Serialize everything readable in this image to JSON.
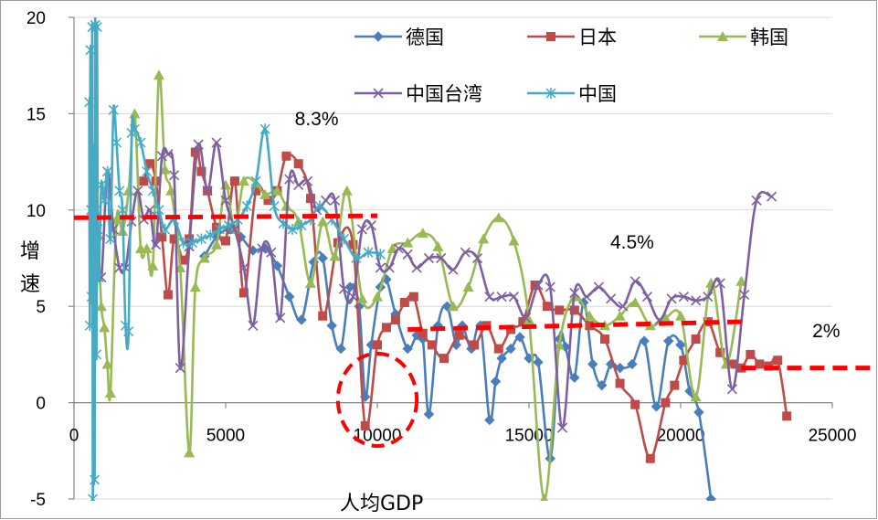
{
  "chart_data": {
    "type": "line",
    "xlabel": "人均GDP",
    "ylabel_chars": [
      "增",
      "速"
    ],
    "xlim": [
      0,
      25000
    ],
    "ylim": [
      -5,
      20
    ],
    "xticks": [
      "0",
      "5000",
      "10000",
      "15000",
      "20000",
      "25000"
    ],
    "yticks": [
      "20",
      "15",
      "10",
      "5",
      "0",
      "-5"
    ],
    "xtick_values": [
      0,
      5000,
      10000,
      15000,
      20000,
      25000
    ],
    "ytick_values": [
      20,
      15,
      10,
      5,
      0,
      -5
    ],
    "legend_position": "top-right",
    "colors": {
      "germany": "#4A7EBB",
      "japan": "#BE4B48",
      "korea": "#98B954",
      "taiwan": "#7D60A0",
      "china": "#46AAC5",
      "trend": "#FF0000"
    },
    "series": [
      {
        "name": "德国",
        "marker": "diamond",
        "color": "#4A7EBB",
        "x": [
          4300,
          4700,
          5100,
          5500,
          5900,
          6300,
          6700,
          7100,
          7500,
          7900,
          8200,
          8500,
          8800,
          9100,
          9400,
          9600,
          9800,
          10100,
          10300,
          10600,
          11000,
          11300,
          11500,
          11700,
          12000,
          12300,
          12600,
          12800,
          13100,
          13400,
          13700,
          13900,
          14100,
          14400,
          14700,
          15000,
          15300,
          15700,
          16000,
          16200,
          16500,
          16800,
          17100,
          17400,
          17700,
          18000,
          18400,
          18800,
          19200,
          19600,
          20000,
          20300,
          20600,
          21000
        ],
        "y": [
          7.6,
          8.6,
          9.0,
          8.6,
          7.9,
          8.0,
          7.1,
          5.5,
          4.3,
          7.3,
          7.5,
          4.0,
          2.8,
          6.0,
          5.0,
          0.3,
          3.0,
          6.0,
          6.4,
          4.6,
          2.8,
          3.5,
          3.3,
          -0.6,
          4.0,
          5.0,
          3.0,
          4.0,
          2.8,
          4.0,
          -0.9,
          1.1,
          2.3,
          2.8,
          3.4,
          2.3,
          2.1,
          -2.9,
          3.3,
          2.9,
          1.3,
          5.2,
          2.0,
          0.9,
          2.0,
          1.8,
          2.0,
          3.2,
          -0.2,
          3.2,
          3.0,
          0.6,
          -0.5,
          -5.0
        ]
      },
      {
        "name": "日本",
        "marker": "square",
        "color": "#BE4B48",
        "x": [
          2300,
          2500,
          2700,
          2900,
          3100,
          3300,
          3600,
          3800,
          4000,
          4200,
          4400,
          4700,
          5000,
          5300,
          5600,
          6000,
          6400,
          6700,
          7000,
          7400,
          7800,
          8200,
          8700,
          9200,
          9600,
          10000,
          10300,
          10600,
          10900,
          11200,
          11500,
          11800,
          12200,
          12700,
          13200,
          13600,
          14000,
          14400,
          14800,
          15200,
          15600,
          16000,
          16500,
          17000,
          17500,
          18000,
          18500,
          19000,
          19500,
          19800,
          20100,
          20500,
          20900,
          21300,
          21700,
          22000,
          22300,
          22600,
          22900,
          23200,
          23500
        ],
        "y": [
          11.5,
          12.4,
          11.5,
          8.6,
          5.6,
          8.5,
          7.4,
          8.5,
          13.0,
          12.0,
          11.0,
          9.1,
          8.4,
          11.5,
          5.7,
          11.0,
          10.5,
          11.0,
          12.8,
          12.4,
          10.6,
          4.5,
          8.3,
          8.2,
          -1.2,
          3.0,
          3.9,
          4.3,
          5.2,
          5.5,
          3.6,
          3.0,
          2.3,
          3.5,
          3.0,
          4.0,
          2.8,
          3.8,
          4.2,
          6.1,
          5.0,
          4.8,
          4.8,
          4.0,
          3.3,
          1.0,
          -0.1,
          -2.9,
          0.0,
          0.9,
          2.2,
          3.3,
          4.2,
          2.6,
          2.0,
          1.8,
          2.5,
          2.0,
          1.9,
          2.2,
          -0.7
        ]
      },
      {
        "name": "韩国",
        "marker": "triangle",
        "color": "#98B954",
        "x": [
          800,
          900,
          1000,
          1100,
          1200,
          1400,
          1600,
          1800,
          2000,
          2200,
          2400,
          2600,
          2800,
          3000,
          3200,
          3500,
          3800,
          4000,
          4300,
          4700,
          5000,
          5300,
          5600,
          6000,
          6300,
          6700,
          7000,
          7400,
          7800,
          8200,
          8600,
          9000,
          9500,
          10000,
          10500,
          11000,
          11500,
          12000,
          12500,
          13000,
          13500,
          14000,
          14500,
          15000,
          15500,
          16000,
          16500,
          17000,
          17500,
          18000,
          18500,
          19000,
          19500,
          20000,
          20500,
          21000,
          21500,
          22000
        ],
        "y": [
          8.7,
          5.0,
          3.9,
          2.0,
          0.5,
          9.5,
          8.9,
          11.0,
          15.0,
          8.0,
          8.0,
          7.1,
          17.0,
          12.1,
          11.0,
          7.0,
          -2.6,
          6.0,
          7.5,
          8.2,
          11.3,
          9.0,
          11.5,
          11.4,
          10.8,
          11.0,
          10.2,
          9.4,
          6.2,
          9.4,
          7.6,
          11.0,
          5.4,
          5.5,
          8.0,
          8.3,
          8.8,
          8.1,
          5.0,
          6.0,
          8.5,
          9.6,
          8.4,
          4.3,
          -5.0,
          3.0,
          5.5,
          4.5,
          4.0,
          4.5,
          5.2,
          4.0,
          4.4,
          4.5,
          0.3,
          6.2,
          2.0,
          6.3
        ]
      },
      {
        "name": "中国台湾",
        "marker": "x",
        "color": "#7D60A0",
        "x": [
          700,
          900,
          1100,
          1300,
          1500,
          1700,
          1900,
          2100,
          2300,
          2500,
          2700,
          2900,
          3100,
          3300,
          3500,
          3800,
          4100,
          4400,
          4700,
          5000,
          5300,
          5600,
          5900,
          6200,
          6500,
          6800,
          7100,
          7400,
          7700,
          8000,
          8300,
          8600,
          8900,
          9200,
          9500,
          9800,
          10100,
          10400,
          10700,
          11000,
          11300,
          11700,
          12100,
          12500,
          12900,
          13300,
          13700,
          14100,
          14500,
          14900,
          15300,
          15700,
          16100,
          16500,
          16900,
          17300,
          17700,
          18100,
          18500,
          18900,
          19300,
          19700,
          20100,
          20500,
          20900,
          21300,
          21700,
          22100,
          22500,
          23000
        ],
        "y": [
          8.0,
          6.5,
          12.0,
          9.0,
          7.0,
          7.0,
          9.4,
          11.0,
          9.5,
          10.0,
          8.2,
          12.8,
          12.9,
          11.8,
          1.8,
          8.1,
          13.4,
          11.0,
          13.5,
          10.5,
          9.0,
          7.0,
          4.0,
          8.0,
          7.8,
          4.4,
          11.6,
          11.3,
          11.5,
          10.0,
          10.5,
          10.5,
          5.9,
          5.5,
          9.0,
          9.2,
          7.0,
          7.0,
          8.0,
          7.7,
          7.0,
          7.5,
          7.5,
          6.9,
          7.8,
          7.5,
          5.5,
          5.5,
          5.5,
          4.4,
          6.1,
          6.0,
          -1.3,
          5.7,
          5.5,
          6.0,
          5.4,
          5.0,
          6.3,
          5.5,
          4.3,
          5.4,
          5.5,
          5.3,
          5.5,
          6.2,
          0.7,
          5.6,
          10.5,
          10.7
        ]
      },
      {
        "name": "中国",
        "marker": "asterisk",
        "color": "#46AAC5",
        "x": [
          500,
          520,
          540,
          560,
          580,
          600,
          620,
          640,
          660,
          680,
          700,
          720,
          740,
          760,
          780,
          820,
          900,
          1000,
          1100,
          1200,
          1300,
          1400,
          1500,
          1600,
          1700,
          1800,
          1900,
          2000,
          2200,
          2400,
          2600,
          2800,
          3000,
          3300,
          3600,
          3900,
          4200,
          4500,
          4800,
          5100,
          5400,
          5700,
          6000,
          6300,
          6600,
          6900,
          7200,
          7500,
          7800,
          8100,
          8500,
          8900,
          9300,
          9700,
          10100
        ],
        "y": [
          15.6,
          4.0,
          18.3,
          10.0,
          5.5,
          19.5,
          -5.0,
          7.0,
          13.0,
          -4.0,
          19.6,
          10.0,
          2.5,
          19.5,
          9.0,
          6.5,
          11.3,
          10.5,
          12.0,
          8.5,
          15.2,
          13.5,
          11.0,
          10.0,
          4.0,
          3.7,
          14.0,
          14.2,
          13.5,
          12.0,
          11.0,
          10.0,
          9.0,
          9.5,
          8.3,
          8.3,
          8.5,
          8.7,
          9.0,
          9.2,
          9.5,
          10.2,
          11.5,
          14.2,
          10.2,
          9.3,
          9.0,
          9.2,
          9.5,
          10.2,
          9.5,
          8.5,
          7.5,
          7.8,
          7.7
        ]
      }
    ],
    "trend_lines": [
      {
        "x": [
          0,
          10000
        ],
        "y": [
          9.6,
          9.7
        ]
      },
      {
        "x": [
          11000,
          22000
        ],
        "y": [
          3.8,
          4.2
        ]
      },
      {
        "x": [
          22000,
          26500
        ],
        "y": [
          1.8,
          1.8
        ]
      }
    ],
    "annotations": [
      {
        "text": "8.3%",
        "x": 8000,
        "y": 14.4
      },
      {
        "text": "4.5%",
        "x": 18400,
        "y": 8.0
      },
      {
        "text": "2%",
        "x": 24800,
        "y": 3.4
      }
    ],
    "highlight_ellipse": {
      "cx": 10000,
      "cy": 0.15,
      "rx": 1300,
      "ry": 2.4
    }
  }
}
